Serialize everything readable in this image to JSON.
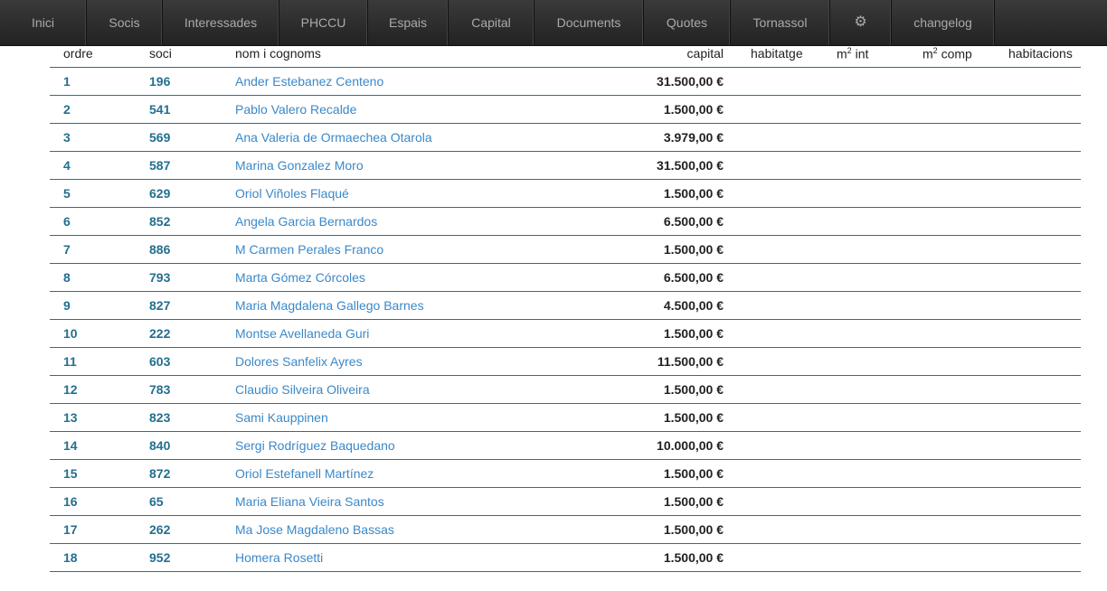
{
  "nav": [
    "Inici",
    "Socis",
    "Interessades",
    "PHCCU",
    "Espais",
    "Capital",
    "Documents",
    "Quotes",
    "Tornassol",
    "gears-icon",
    "changelog"
  ],
  "headers": {
    "ordre": "ordre",
    "soci": "soci",
    "nom": "nom i cognoms",
    "capital": "capital",
    "habitatge": "habitatge",
    "m2int": "int",
    "m2comp": "comp",
    "habitacions": "habitacions",
    "m": "m",
    "sup": "2"
  },
  "rows": [
    [
      "1",
      "196",
      "Ander Estebanez Centeno",
      "31.500,00 €"
    ],
    [
      "2",
      "541",
      "Pablo Valero Recalde",
      "1.500,00 €"
    ],
    [
      "3",
      "569",
      "Ana Valeria de Ormaechea Otarola",
      "3.979,00 €"
    ],
    [
      "4",
      "587",
      "Marina Gonzalez Moro",
      "31.500,00 €"
    ],
    [
      "5",
      "629",
      "Oriol Viñoles Flaqué",
      "1.500,00 €"
    ],
    [
      "6",
      "852",
      "Angela Garcia Bernardos",
      "6.500,00 €"
    ],
    [
      "7",
      "886",
      "M Carmen Perales Franco",
      "1.500,00 €"
    ],
    [
      "8",
      "793",
      "Marta Gómez Córcoles",
      "6.500,00 €"
    ],
    [
      "9",
      "827",
      "Maria Magdalena Gallego Barnes",
      "4.500,00 €"
    ],
    [
      "10",
      "222",
      "Montse Avellaneda Guri",
      "1.500,00 €"
    ],
    [
      "11",
      "603",
      "Dolores Sanfelix Ayres",
      "11.500,00 €"
    ],
    [
      "12",
      "783",
      "Claudio Silveira Oliveira",
      "1.500,00 €"
    ],
    [
      "13",
      "823",
      "Sami Kauppinen",
      "1.500,00 €"
    ],
    [
      "14",
      "840",
      "Sergi Rodríguez Baquedano",
      "10.000,00 €"
    ],
    [
      "15",
      "872",
      "Oriol Estefanell Martínez",
      "1.500,00 €"
    ],
    [
      "16",
      "65",
      "Maria Eliana Vieira Santos",
      "1.500,00 €"
    ],
    [
      "17",
      "262",
      "Ma Jose Magdaleno Bassas",
      "1.500,00 €"
    ],
    [
      "18",
      "952",
      "Homera Rosetti",
      "1.500,00 €"
    ]
  ]
}
